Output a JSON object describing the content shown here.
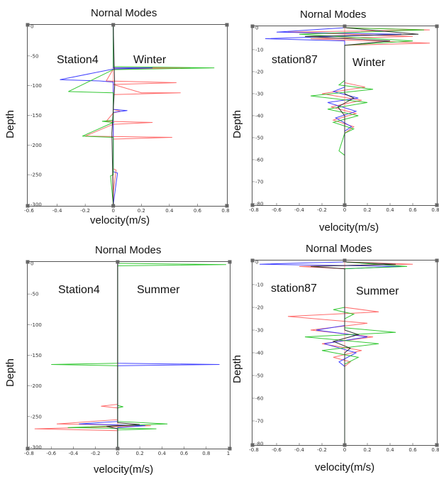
{
  "chart_data": [
    {
      "type": "line",
      "title": "Nornal Modes",
      "xlabel": "velocity(m/s)",
      "ylabel": "Depth",
      "station": "Station4",
      "season": "Winter",
      "xlim": [
        -0.6,
        0.8
      ],
      "ylim": [
        -300,
        0
      ],
      "xticks": [
        "-0.6",
        "-0.4",
        "-0.2",
        "0",
        "0.2",
        "0.4",
        "0.6",
        "0.8"
      ],
      "yticks": [
        "0",
        "-50",
        "-100",
        "-150",
        "-200",
        "-250",
        "-300"
      ],
      "series": [
        {
          "color": "#ff5c5c",
          "points": [
            [
              0,
              0
            ],
            [
              0,
              -70
            ],
            [
              0.55,
              -70
            ],
            [
              0,
              -72
            ],
            [
              -0.05,
              -92
            ],
            [
              0.45,
              -95
            ],
            [
              0,
              -98
            ],
            [
              0.2,
              -112
            ],
            [
              0.48,
              -112
            ],
            [
              0,
              -115
            ],
            [
              0,
              -140
            ],
            [
              0.05,
              -143
            ],
            [
              0,
              -146
            ],
            [
              -0.05,
              -160
            ],
            [
              0.28,
              -162
            ],
            [
              0,
              -165
            ],
            [
              -0.2,
              -185
            ],
            [
              0.42,
              -187
            ],
            [
              0,
              -190
            ],
            [
              0,
              -240
            ],
            [
              0.02,
              -242
            ],
            [
              0,
              -280
            ],
            [
              0,
              -300
            ]
          ]
        },
        {
          "color": "#2e2eff",
          "points": [
            [
              0,
              0
            ],
            [
              0,
              -70
            ],
            [
              0.28,
              -70
            ],
            [
              0,
              -72
            ],
            [
              -0.38,
              -90
            ],
            [
              -0.1,
              -92
            ],
            [
              0,
              -94
            ],
            [
              0,
              -140
            ],
            [
              0.1,
              -142
            ],
            [
              0,
              -145
            ],
            [
              0,
              -245
            ],
            [
              0.03,
              -247
            ],
            [
              0,
              -300
            ]
          ]
        },
        {
          "color": "#1fc21f",
          "points": [
            [
              0,
              0
            ],
            [
              0,
              -68
            ],
            [
              0.72,
              -70
            ],
            [
              0,
              -73
            ],
            [
              -0.32,
              -110
            ],
            [
              0,
              -112
            ],
            [
              0,
              -158
            ],
            [
              -0.08,
              -160
            ],
            [
              0,
              -162
            ],
            [
              -0.22,
              -185
            ],
            [
              0,
              -187
            ],
            [
              0,
              -250
            ],
            [
              -0.02,
              -252
            ],
            [
              0,
              -300
            ]
          ]
        },
        {
          "color": "#222222",
          "points": [
            [
              0,
              0
            ],
            [
              0.01,
              -100
            ],
            [
              -0.01,
              -180
            ],
            [
              0,
              -300
            ]
          ]
        }
      ]
    },
    {
      "type": "line",
      "title": "Nornal Modes",
      "xlabel": "velocity(m/s)",
      "ylabel": "Depth",
      "station": "station87",
      "season": "Winter",
      "xlim": [
        -0.8,
        0.8
      ],
      "ylim": [
        -80,
        0
      ],
      "xticks": [
        "-0.8",
        "-0.6",
        "-0.4",
        "-0.2",
        "0",
        "0.2",
        "0.4",
        "0.6",
        "0.8"
      ],
      "yticks": [
        "0",
        "-10",
        "-20",
        "-30",
        "-40",
        "-50",
        "-60",
        "-70",
        "-80"
      ],
      "series": [
        {
          "color": "#ff5c5c",
          "points": [
            [
              0,
              0
            ],
            [
              0.75,
              -1
            ],
            [
              -0.5,
              -2
            ],
            [
              0.6,
              -4
            ],
            [
              -0.3,
              -5
            ],
            [
              0.75,
              -7
            ],
            [
              0,
              -8
            ],
            [
              0,
              -25
            ],
            [
              0.18,
              -27
            ],
            [
              -0.2,
              -30
            ],
            [
              0.15,
              -33
            ],
            [
              -0.12,
              -36
            ],
            [
              0.1,
              -39
            ],
            [
              -0.1,
              -42
            ],
            [
              0.08,
              -45
            ],
            [
              0,
              -48
            ],
            [
              0,
              -80
            ]
          ]
        },
        {
          "color": "#2e2eff",
          "points": [
            [
              0,
              0
            ],
            [
              -0.6,
              -2
            ],
            [
              0.5,
              -3
            ],
            [
              -0.7,
              -5
            ],
            [
              0,
              -6
            ],
            [
              0,
              -27
            ],
            [
              -0.1,
              -29
            ],
            [
              0.12,
              -32
            ],
            [
              -0.15,
              -34
            ],
            [
              0.1,
              -38
            ],
            [
              -0.08,
              -41
            ],
            [
              0.06,
              -45
            ],
            [
              0,
              -47
            ],
            [
              0,
              -80
            ]
          ]
        },
        {
          "color": "#1fc21f",
          "points": [
            [
              0,
              0
            ],
            [
              0.7,
              -1
            ],
            [
              -0.4,
              -3
            ],
            [
              0.6,
              -6
            ],
            [
              0,
              -8
            ],
            [
              0,
              -24
            ],
            [
              -0.05,
              -26
            ],
            [
              0.25,
              -28
            ],
            [
              -0.3,
              -31
            ],
            [
              0.2,
              -34
            ],
            [
              -0.15,
              -37
            ],
            [
              0.12,
              -40
            ],
            [
              -0.1,
              -43
            ],
            [
              0.08,
              -46
            ],
            [
              0,
              -48
            ],
            [
              -0.05,
              -56
            ],
            [
              0,
              -58
            ],
            [
              0,
              -80
            ]
          ]
        },
        {
          "color": "#222222",
          "points": [
            [
              0,
              0
            ],
            [
              0.65,
              -3
            ],
            [
              -0.35,
              -4
            ],
            [
              0.4,
              -6
            ],
            [
              0,
              -8
            ],
            [
              0,
              -30
            ],
            [
              0.08,
              -32
            ],
            [
              -0.06,
              -36
            ],
            [
              0,
              -40
            ],
            [
              0,
              -80
            ]
          ]
        }
      ]
    },
    {
      "type": "line",
      "title": "Nornal Modes",
      "xlabel": "velocity(m/s)",
      "ylabel": "Depth",
      "station": "Station4",
      "season": "Summer",
      "xlim": [
        -0.8,
        1
      ],
      "ylim": [
        -300,
        0
      ],
      "xticks": [
        "-0.8",
        "-0.6",
        "-0.4",
        "-0.2",
        "0",
        "0.2",
        "0.4",
        "0.6",
        "0.8",
        "1"
      ],
      "yticks": [
        "0",
        "-50",
        "-100",
        "-150",
        "-200",
        "-250",
        "-300"
      ],
      "series": [
        {
          "color": "#ff5c5c",
          "points": [
            [
              0,
              0
            ],
            [
              0,
              -230
            ],
            [
              -0.15,
              -233
            ],
            [
              0,
              -236
            ],
            [
              0,
              -255
            ],
            [
              -0.55,
              -262
            ],
            [
              0.3,
              -265
            ],
            [
              -0.75,
              -270
            ],
            [
              0,
              -273
            ],
            [
              0,
              -300
            ]
          ]
        },
        {
          "color": "#2e2eff",
          "points": [
            [
              0,
              0
            ],
            [
              0,
              -163
            ],
            [
              0.92,
              -165
            ],
            [
              0,
              -167
            ],
            [
              0,
              -258
            ],
            [
              -0.35,
              -262
            ],
            [
              0.25,
              -265
            ],
            [
              0,
              -268
            ],
            [
              0,
              -300
            ]
          ]
        },
        {
          "color": "#1fc21f",
          "points": [
            [
              0,
              0
            ],
            [
              0.98,
              -2
            ],
            [
              0,
              -4
            ],
            [
              0,
              -163
            ],
            [
              -0.6,
              -165
            ],
            [
              0,
              -167
            ],
            [
              0,
              -232
            ],
            [
              0.05,
              -234
            ],
            [
              0,
              -236
            ],
            [
              0,
              -258
            ],
            [
              0.45,
              -262
            ],
            [
              -0.45,
              -268
            ],
            [
              0.35,
              -270
            ],
            [
              0,
              -272
            ],
            [
              0,
              -300
            ]
          ]
        },
        {
          "color": "#222222",
          "points": [
            [
              0,
              0
            ],
            [
              0,
              -260
            ],
            [
              0.2,
              -263
            ],
            [
              -0.1,
              -266
            ],
            [
              0,
              -270
            ],
            [
              0,
              -300
            ]
          ]
        }
      ]
    },
    {
      "type": "line",
      "title": "Nornal Modes",
      "xlabel": "velocity(m/s)",
      "ylabel": "Depth",
      "station": "station87",
      "season": "Summer",
      "xlim": [
        -0.8,
        0.8
      ],
      "ylim": [
        -80,
        0
      ],
      "xticks": [
        "-0.8",
        "-0.6",
        "-0.4",
        "-0.2",
        "0",
        "0.2",
        "0.4",
        "0.6",
        "0.8"
      ],
      "yticks": [
        "0",
        "-10",
        "-20",
        "-30",
        "-40",
        "-50",
        "-60",
        "-70",
        "-80"
      ],
      "series": [
        {
          "color": "#ff5c5c",
          "points": [
            [
              0,
              0
            ],
            [
              0.6,
              -1
            ],
            [
              -0.4,
              -2
            ],
            [
              0,
              -3
            ],
            [
              0,
              -20
            ],
            [
              0.3,
              -22
            ],
            [
              -0.5,
              -24
            ],
            [
              0.2,
              -27
            ],
            [
              -0.3,
              -30
            ],
            [
              0.25,
              -33
            ],
            [
              -0.2,
              -36
            ],
            [
              0.15,
              -39
            ],
            [
              -0.1,
              -42
            ],
            [
              0.05,
              -44
            ],
            [
              0,
              -46
            ],
            [
              0,
              -80
            ]
          ]
        },
        {
          "color": "#2e2eff",
          "points": [
            [
              0,
              0
            ],
            [
              -0.75,
              -1
            ],
            [
              0.5,
              -2
            ],
            [
              0,
              -3
            ],
            [
              0,
              -28
            ],
            [
              -0.25,
              -30
            ],
            [
              0.2,
              -33
            ],
            [
              -0.18,
              -36
            ],
            [
              0.1,
              -40
            ],
            [
              -0.05,
              -44
            ],
            [
              0,
              -46
            ],
            [
              0,
              -80
            ]
          ]
        },
        {
          "color": "#1fc21f",
          "points": [
            [
              0,
              0
            ],
            [
              0.55,
              -2
            ],
            [
              0,
              -3
            ],
            [
              0,
              -20
            ],
            [
              -0.1,
              -21
            ],
            [
              0.08,
              -23
            ],
            [
              0,
              -25
            ],
            [
              0,
              -29
            ],
            [
              0.45,
              -31
            ],
            [
              -0.35,
              -33
            ],
            [
              0.3,
              -36
            ],
            [
              -0.2,
              -39
            ],
            [
              0.12,
              -42
            ],
            [
              0,
              -45
            ],
            [
              0,
              -80
            ]
          ]
        },
        {
          "color": "#222222",
          "points": [
            [
              0,
              0
            ],
            [
              0.45,
              -1
            ],
            [
              -0.3,
              -2
            ],
            [
              0,
              -3
            ],
            [
              0,
              -30
            ],
            [
              0.12,
              -32
            ],
            [
              -0.1,
              -35
            ],
            [
              0.05,
              -38
            ],
            [
              0,
              -40
            ],
            [
              0,
              -80
            ]
          ]
        }
      ]
    }
  ]
}
